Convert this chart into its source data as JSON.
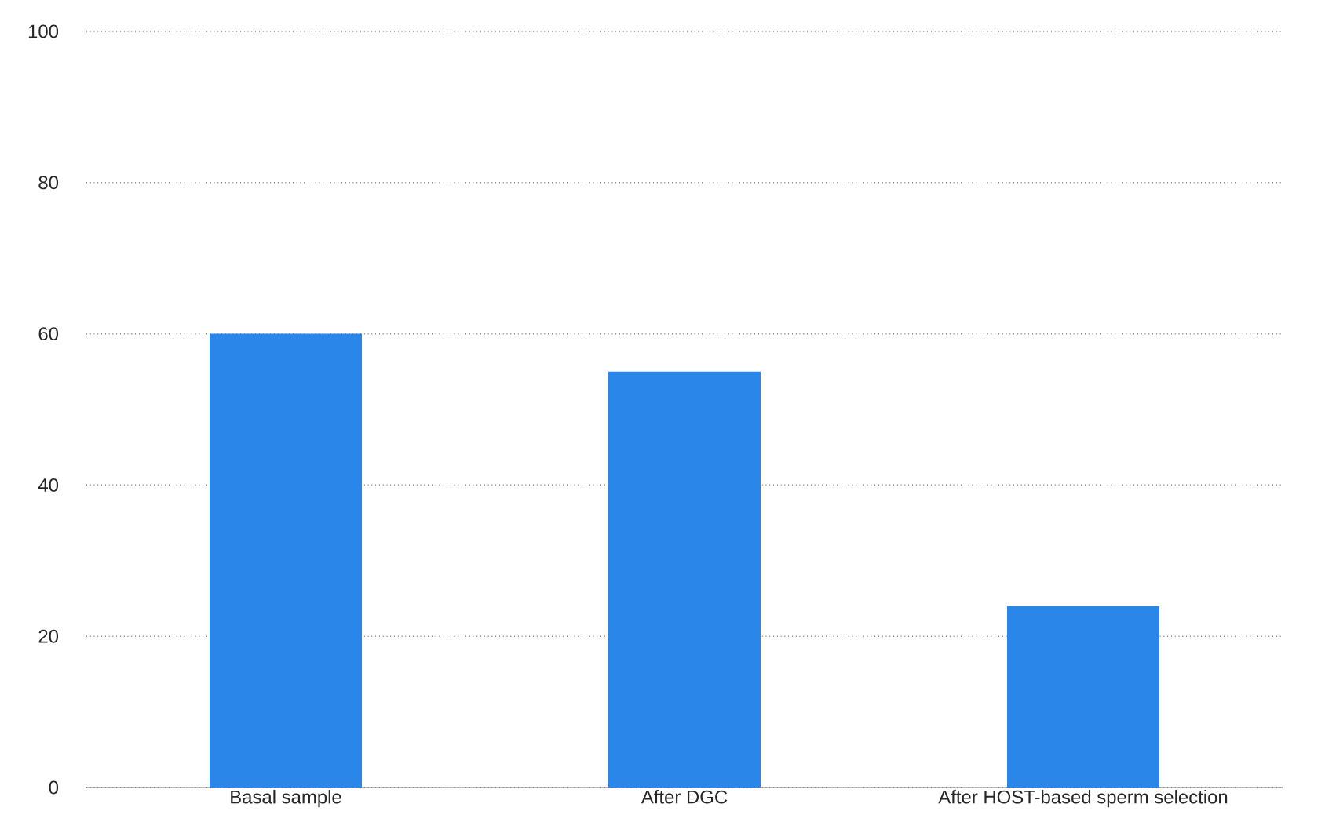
{
  "chart_data": {
    "type": "bar",
    "categories": [
      "Basal sample",
      "After DGC",
      "After HOST-based sperm selection"
    ],
    "values": [
      60,
      55,
      24
    ],
    "color": "#2a86e8",
    "ylim": [
      0,
      100
    ],
    "yticks": [
      0,
      20,
      40,
      60,
      80,
      100
    ],
    "grid": "y"
  }
}
